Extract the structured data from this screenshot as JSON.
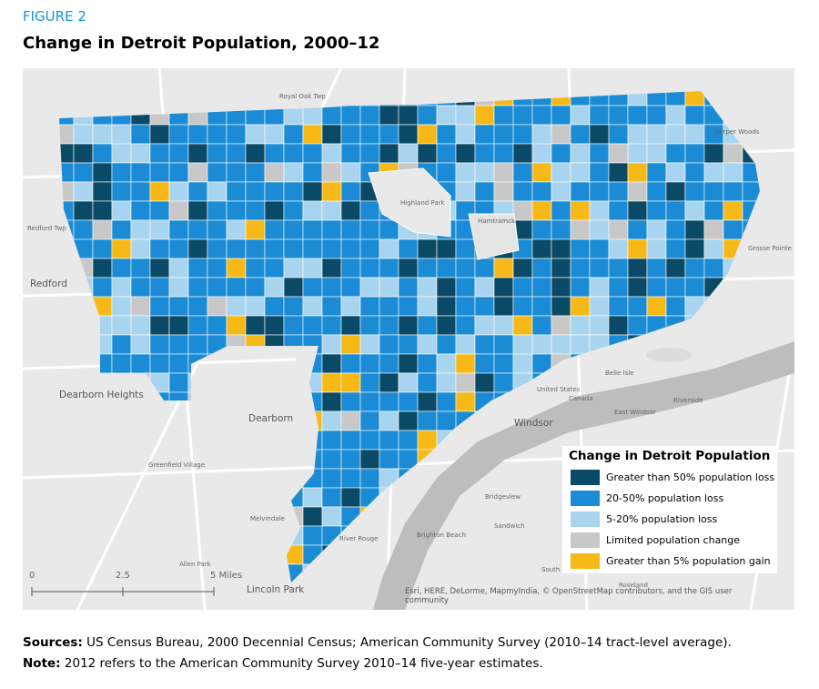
{
  "figure_label": "FIGURE 2",
  "title": "Change in Detroit Population, 2000–12",
  "map": {
    "places": [
      "Royal Oak Twp",
      "Harper Woods",
      "Redford Twp",
      "Redford",
      "Highland Park",
      "Hamtramck",
      "Grosse Pointe",
      "Dearborn Heights",
      "Dearborn",
      "Windsor",
      "East Windsor",
      "Riverside",
      "Greenfield Village",
      "Melvindale",
      "River Rouge",
      "Brighton Beach",
      "Sandwich",
      "Bridgeview",
      "Allen Park",
      "Lincoln Park",
      "South Windsor",
      "Roseland",
      "Belle Isle",
      "United States",
      "Canada"
    ],
    "legend": {
      "title": "Change in Detroit Population",
      "items": [
        {
          "label": "Greater than 50% population loss",
          "color": "#0b4a66"
        },
        {
          "label": "20-50% population loss",
          "color": "#1a8bd4"
        },
        {
          "label": "5-20% population loss",
          "color": "#a9d4ef"
        },
        {
          "label": "Limited population change",
          "color": "#c8c8c8"
        },
        {
          "label": "Greater than 5% population gain",
          "color": "#f7b917"
        }
      ]
    },
    "scale": [
      "0",
      "2.5",
      "5 Miles"
    ],
    "attribution": "Esri, HERE, DeLorme, MapmyIndia, © OpenStreetMap contributors, and the GIS user community"
  },
  "sources": {
    "label": "Sources:",
    "text": " US Census Bureau, 2000 Decennial Census; American Community Survey (2010–14 tract-level average)."
  },
  "note": {
    "label": "Note:",
    "text": " 2012 refers to the American Community Survey 2010–14 five-year estimates."
  }
}
